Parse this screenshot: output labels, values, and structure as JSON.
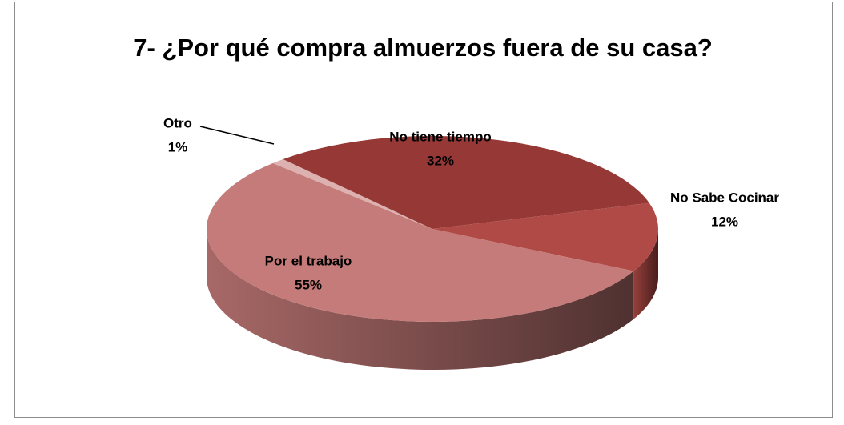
{
  "chart_data": {
    "type": "pie3d",
    "title": "7- ¿Por qué compra almuerzos fuera de su casa?",
    "categories": [
      "Otro",
      "No tiene tiempo",
      "No Sabe Cocinar",
      "Por el trabajo"
    ],
    "values": [
      1,
      32,
      12,
      55
    ],
    "value_labels": [
      "1%",
      "32%",
      "12%",
      "55%"
    ],
    "colors": [
      "#dcb1af",
      "#953836",
      "#b04a46",
      "#c57b79"
    ]
  }
}
